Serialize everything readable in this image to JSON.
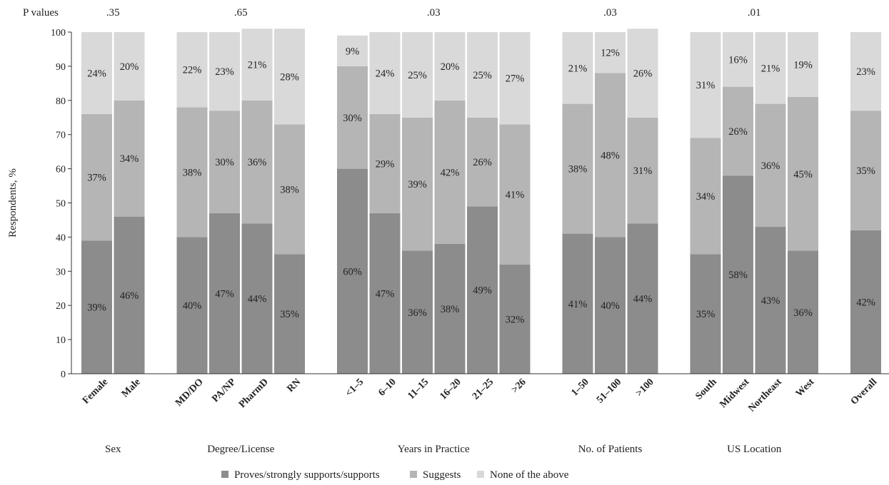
{
  "chart_data": {
    "type": "bar",
    "stacked": true,
    "ylabel": "Respondents, %",
    "ylim": [
      0,
      100
    ],
    "yticks": [
      0,
      10,
      20,
      30,
      40,
      50,
      60,
      70,
      80,
      90,
      100
    ],
    "grid": false,
    "legend_position": "bottom",
    "pvalues_label": "P values",
    "groups": [
      {
        "label": "Sex",
        "pvalue": ".35",
        "categories": [
          "Female",
          "Male"
        ]
      },
      {
        "label": "Degree/License",
        "pvalue": ".65",
        "categories": [
          "MD/DO",
          "PA/NP",
          "PharmD",
          "RN"
        ]
      },
      {
        "label": "Years in Practice",
        "pvalue": ".03",
        "categories": [
          "<1–5",
          "6–10",
          "11–15",
          "16–20",
          "21–25",
          ">26"
        ]
      },
      {
        "label": "No. of Patients",
        "pvalue": ".03",
        "categories": [
          "1–50",
          "51–100",
          ">100"
        ]
      },
      {
        "label": "US Location",
        "pvalue": ".01",
        "categories": [
          "South",
          "Midwest",
          "Northeast",
          "West"
        ]
      },
      {
        "label": "",
        "pvalue": "",
        "categories": [
          "Overall"
        ]
      }
    ],
    "series": [
      {
        "name": "Proves/strongly supports/supports",
        "color": "#8c8c8c",
        "values": [
          39,
          46,
          40,
          47,
          44,
          35,
          60,
          47,
          36,
          38,
          49,
          32,
          41,
          40,
          44,
          35,
          58,
          43,
          36,
          42
        ],
        "labels": [
          "39%",
          "46%",
          "40%",
          "47%",
          "44%",
          "35%",
          "60%",
          "47%",
          "36%",
          "38%",
          "49%",
          "32%",
          "41%",
          "40%",
          "44%",
          "35%",
          "58%",
          "43%",
          "36%",
          "42%"
        ]
      },
      {
        "name": "Suggests",
        "color": "#b5b5b5",
        "values": [
          37,
          34,
          38,
          30,
          36,
          38,
          30,
          29,
          39,
          42,
          26,
          41,
          38,
          48,
          31,
          34,
          26,
          36,
          45,
          35
        ],
        "labels": [
          "37%",
          "34%",
          "38%",
          "30%",
          "36%",
          "38%",
          "30%",
          "29%",
          "39%",
          "42%",
          "26%",
          "41%",
          "38%",
          "48%",
          "31%",
          "34%",
          "26%",
          "36%",
          "45%",
          "35%"
        ]
      },
      {
        "name": "None of the above",
        "color": "#d9d9d9",
        "values": [
          24,
          20,
          22,
          23,
          21,
          28,
          9,
          24,
          25,
          20,
          25,
          27,
          21,
          12,
          26,
          31,
          16,
          21,
          19,
          23
        ],
        "labels": [
          "24%",
          "20%",
          "22%",
          "23%",
          "21%",
          "28%",
          "9%",
          "24%",
          "25%",
          "20%",
          "25%",
          "27%",
          "21%",
          "12%",
          "26%",
          "31%",
          "16%",
          "21%",
          "19%",
          "23%"
        ]
      }
    ]
  }
}
